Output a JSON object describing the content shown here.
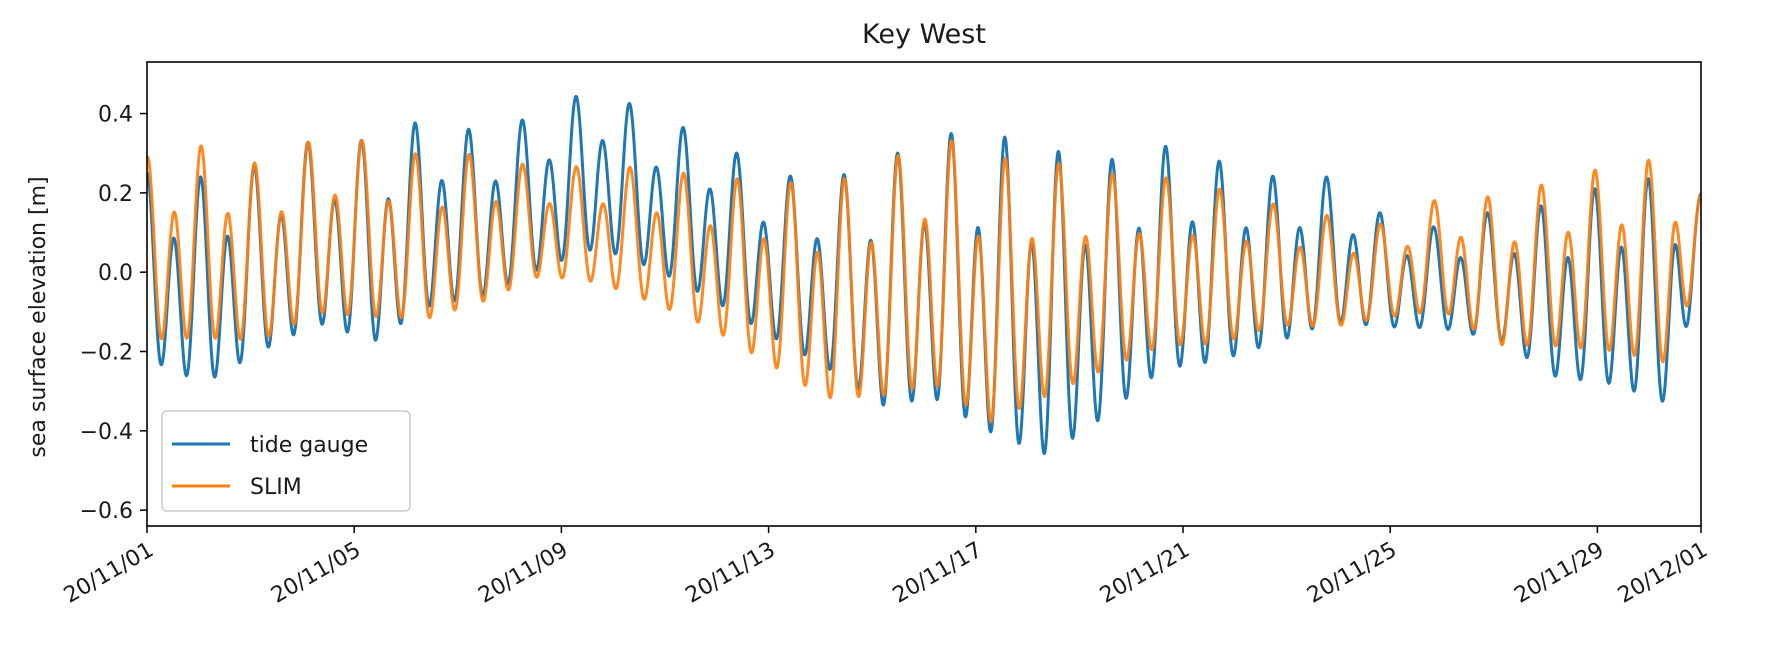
{
  "chart_data": {
    "type": "line",
    "title": "Key West",
    "xlabel": "",
    "ylabel": "sea surface elevation [m]",
    "x_range": [
      "2020-11-01",
      "2020-12-01"
    ],
    "ylim": [
      -0.64,
      0.53
    ],
    "yticks": [
      -0.6,
      -0.4,
      -0.2,
      0.0,
      0.2,
      0.4
    ],
    "ytick_labels": [
      "−0.6",
      "−0.4",
      "−0.2",
      "0.0",
      "0.2",
      "0.4"
    ],
    "xticks": [
      "2020-11-01",
      "2020-11-05",
      "2020-11-09",
      "2020-11-13",
      "2020-11-17",
      "2020-11-21",
      "2020-11-25",
      "2020-11-29",
      "2020-12-01"
    ],
    "xtick_labels": [
      "20/11/01",
      "20/11/05",
      "20/11/09",
      "20/11/13",
      "20/11/17",
      "20/11/21",
      "20/11/25",
      "20/11/29",
      "20/12/01"
    ],
    "grid": false,
    "legend_position": "lower-left",
    "series": [
      {
        "name": "tide gauge",
        "color": "#1f77b4",
        "tides": [
          [
            0.0,
            0.25,
            -0.29
          ],
          [
            1.1,
            0.24,
            -0.36
          ],
          [
            2.2,
            0.27,
            -0.27
          ],
          [
            3.3,
            0.34,
            -0.2
          ],
          [
            4.4,
            0.33,
            -0.25
          ],
          [
            5.4,
            0.39,
            -0.16
          ],
          [
            6.5,
            0.35,
            -0.12
          ],
          [
            7.6,
            0.4,
            -0.05
          ],
          [
            8.7,
            0.47,
            0.0
          ],
          [
            9.8,
            0.39,
            -0.05
          ],
          [
            10.9,
            0.34,
            -0.13
          ],
          [
            12.0,
            0.25,
            -0.22
          ],
          [
            13.1,
            0.23,
            -0.31
          ],
          [
            14.2,
            0.28,
            -0.43
          ],
          [
            15.2,
            0.35,
            -0.42
          ],
          [
            16.3,
            0.35,
            -0.52
          ],
          [
            17.4,
            0.31,
            -0.58
          ],
          [
            18.5,
            0.28,
            -0.46
          ],
          [
            19.6,
            0.32,
            -0.33
          ],
          [
            20.7,
            0.28,
            -0.3
          ],
          [
            21.8,
            0.24,
            -0.24
          ],
          [
            22.9,
            0.24,
            -0.18
          ],
          [
            23.9,
            0.14,
            -0.18
          ],
          [
            25.0,
            0.11,
            -0.18
          ],
          [
            26.1,
            0.16,
            -0.22
          ],
          [
            27.2,
            0.17,
            -0.33
          ],
          [
            28.3,
            0.23,
            -0.36
          ],
          [
            29.4,
            0.24,
            -0.42
          ],
          [
            30.0,
            0.2,
            0.0
          ]
        ]
      },
      {
        "name": "SLIM",
        "color": "#ff7f0e",
        "tides": [
          [
            0.0,
            0.29,
            -0.24
          ],
          [
            1.1,
            0.32,
            -0.24
          ],
          [
            2.2,
            0.27,
            -0.24
          ],
          [
            3.3,
            0.34,
            -0.17
          ],
          [
            4.4,
            0.33,
            -0.18
          ],
          [
            5.4,
            0.29,
            -0.18
          ],
          [
            6.5,
            0.3,
            -0.13
          ],
          [
            7.6,
            0.26,
            -0.05
          ],
          [
            8.7,
            0.27,
            -0.07
          ],
          [
            9.8,
            0.26,
            -0.13
          ],
          [
            10.9,
            0.24,
            -0.2
          ],
          [
            12.0,
            0.23,
            -0.3
          ],
          [
            13.1,
            0.22,
            -0.4
          ],
          [
            14.2,
            0.27,
            -0.4
          ],
          [
            15.2,
            0.35,
            -0.38
          ],
          [
            16.3,
            0.29,
            -0.48
          ],
          [
            17.4,
            0.28,
            -0.4
          ],
          [
            18.5,
            0.25,
            -0.32
          ],
          [
            19.6,
            0.24,
            -0.25
          ],
          [
            20.7,
            0.21,
            -0.24
          ],
          [
            21.8,
            0.17,
            -0.18
          ],
          [
            22.9,
            0.14,
            -0.18
          ],
          [
            23.9,
            0.12,
            -0.15
          ],
          [
            25.0,
            0.19,
            -0.14
          ],
          [
            26.1,
            0.19,
            -0.24
          ],
          [
            27.2,
            0.23,
            -0.25
          ],
          [
            28.3,
            0.27,
            -0.27
          ],
          [
            29.4,
            0.29,
            -0.31
          ],
          [
            30.0,
            0.2,
            0.0
          ]
        ]
      }
    ]
  }
}
